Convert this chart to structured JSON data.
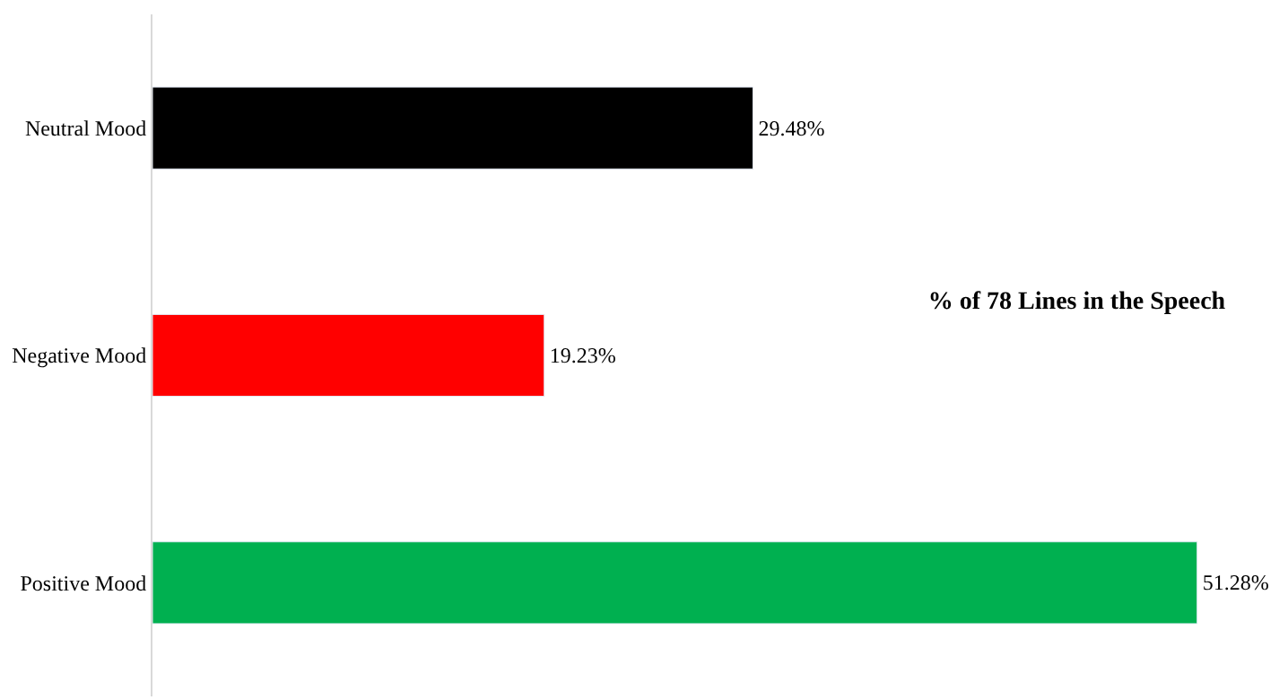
{
  "chart_data": {
    "type": "bar",
    "orientation": "horizontal",
    "title": "% of 78 Lines in the Speech",
    "categories": [
      "Neutral Mood",
      "Negative Mood",
      "Positive Mood"
    ],
    "values": [
      29.48,
      19.23,
      51.28
    ],
    "colors": [
      "#000000",
      "#ff0000",
      "#00b050"
    ],
    "value_labels": [
      "29.48%",
      "19.23%",
      "51.28%"
    ],
    "tick_labels": "y"
  }
}
